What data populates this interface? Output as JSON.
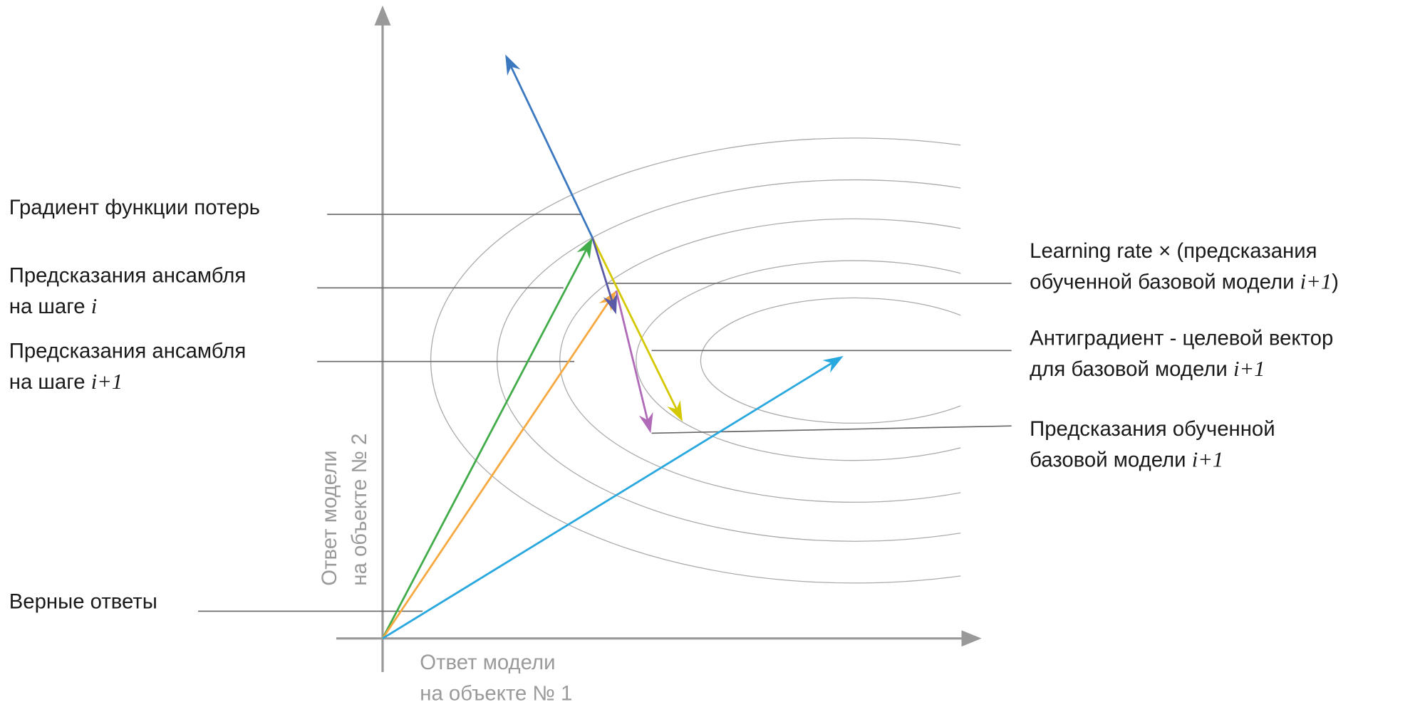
{
  "axes": {
    "x_label": [
      "Ответ модели",
      "на объекте № 1"
    ],
    "y_label": [
      "Ответ модели",
      "на объекте № 2"
    ]
  },
  "labels": {
    "gradient": "Градиент функции потерь",
    "ensemble_i": {
      "line1": "Предсказания ансамбля",
      "line2": "на шаге ",
      "var": "i"
    },
    "ensemble_i1": {
      "line1": "Предсказания ансамбля",
      "line2": "на шаге ",
      "var": "i+1"
    },
    "true_answers": "Верные ответы",
    "learning_rate": {
      "line1": "Learning rate × (предсказания",
      "line2": "обученной базовой модели ",
      "var": "i+1",
      "close": ")"
    },
    "antigradient": {
      "line1": "Антиградиент - целевой вектор",
      "line2": "для базовой модели ",
      "var": "i+1"
    },
    "base_pred": {
      "line1": "Предсказания обученной",
      "line2": "базовой модели ",
      "var": "i+1"
    }
  },
  "colors": {
    "gradient": "#3b78c0",
    "ensemble_i": "#43ac4a",
    "ensemble_i1": "#f7a941",
    "antigradient": "#29a8e0",
    "learning_rate": "#5a5aa6",
    "base_pred": "#b06ab8",
    "yellow": "#d4c800",
    "axis": "#999999"
  }
}
